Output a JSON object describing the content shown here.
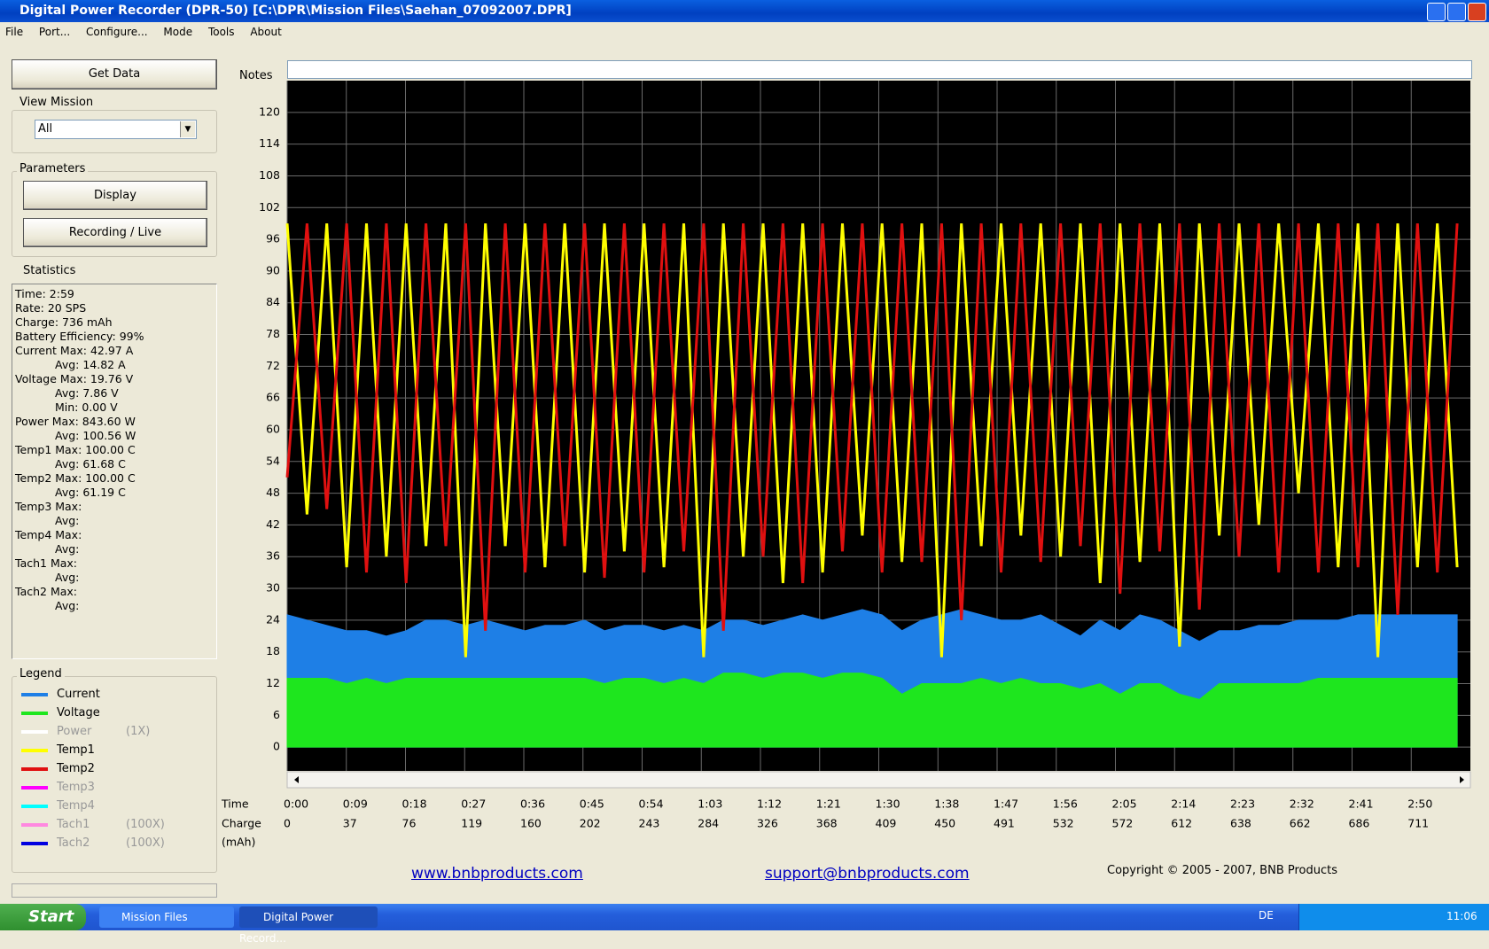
{
  "window": {
    "title": "Digital Power Recorder (DPR-50) [C:\\DPR\\Mission Files\\Saehan_07092007.DPR]"
  },
  "menu": [
    "File",
    "Port...",
    "Configure...",
    "Mode",
    "Tools",
    "About"
  ],
  "sidebar": {
    "get_data": "Get Data",
    "view_mission": {
      "label": "View Mission",
      "selected": "All"
    },
    "parameters": {
      "label": "Parameters",
      "buttons": [
        "Display",
        "Recording / Live"
      ]
    },
    "statistics": {
      "label": "Statistics",
      "lines": [
        "Time: 2:59",
        "Rate: 20 SPS",
        "Charge: 736 mAh",
        "Battery Efficiency: 99%",
        "Current Max: 42.97 A",
        "Avg: 14.82 A",
        "Voltage Max: 19.76 V",
        "Avg: 7.86 V",
        "Min: 0.00 V",
        "Power Max: 843.60 W",
        "Avg: 100.56 W",
        "Temp1 Max: 100.00 C",
        "Avg: 61.68 C",
        "Temp2 Max: 100.00 C",
        "Avg: 61.19 C",
        "Temp3 Max:",
        "Avg:",
        "Temp4 Max:",
        "Avg:",
        "Tach1 Max:",
        "Avg:",
        "Tach2 Max:",
        "Avg:"
      ]
    },
    "legend": {
      "label": "Legend",
      "items": [
        {
          "name": "Power",
          "color": "#ffffff",
          "scale": "(1X)"
        },
        {
          "name": "Temp3",
          "color": "#ff00ff"
        },
        {
          "name": "Temp4",
          "color": "#00ffff"
        },
        {
          "name": "Tach1",
          "color": "#ff88e0",
          "scale": "(100X)"
        },
        {
          "name": "Tach2",
          "color": "#0000e0",
          "scale": "(100X)"
        }
      ]
    }
  },
  "notes_label": "Notes",
  "chart_data": {
    "type": "line",
    "x_label": "Time",
    "x2_label": "Charge",
    "x2_unit": "(mAh)",
    "xlim": [
      0,
      179
    ],
    "xticks": [
      {
        "value": 0,
        "label": "0:00"
      },
      {
        "value": 8.95,
        "label": "0:09"
      },
      {
        "value": 17.9,
        "label": "0:18"
      },
      {
        "value": 26.85,
        "label": "0:27"
      },
      {
        "value": 35.8,
        "label": "0:36"
      },
      {
        "value": 44.75,
        "label": "0:45"
      },
      {
        "value": 53.7,
        "label": "0:54"
      },
      {
        "value": 62.65,
        "label": "1:03"
      },
      {
        "value": 71.6,
        "label": "1:12"
      },
      {
        "value": 80.55,
        "label": "1:21"
      },
      {
        "value": 89.5,
        "label": "1:30"
      },
      {
        "value": 98.45,
        "label": "1:38"
      },
      {
        "value": 107.4,
        "label": "1:47"
      },
      {
        "value": 116.35,
        "label": "1:56"
      },
      {
        "value": 125.3,
        "label": "2:05"
      },
      {
        "value": 134.25,
        "label": "2:14"
      },
      {
        "value": 143.2,
        "label": "2:23"
      },
      {
        "value": 152.15,
        "label": "2:32"
      },
      {
        "value": 161.1,
        "label": "2:41"
      },
      {
        "value": 170.05,
        "label": "2:50"
      }
    ],
    "x2ticks": [
      0,
      37,
      76,
      119,
      160,
      202,
      243,
      284,
      326,
      368,
      409,
      450,
      491,
      532,
      572,
      612,
      638,
      662,
      686,
      711
    ],
    "ylim": [
      -4.5,
      126
    ],
    "yticks": [
      0,
      6,
      12,
      18,
      24,
      30,
      36,
      42,
      48,
      54,
      60,
      66,
      72,
      78,
      84,
      90,
      96,
      102,
      108,
      114,
      120
    ],
    "grid": true,
    "x": [
      0,
      3,
      6,
      9,
      12,
      15,
      18,
      21,
      24,
      27,
      30,
      33,
      36,
      39,
      42,
      45,
      48,
      51,
      54,
      57,
      60,
      63,
      66,
      69,
      72,
      75,
      78,
      81,
      84,
      87,
      90,
      93,
      96,
      99,
      102,
      105,
      108,
      111,
      114,
      117,
      120,
      123,
      126,
      129,
      132,
      135,
      138,
      141,
      144,
      147,
      150,
      153,
      156,
      159,
      162,
      165,
      168,
      171,
      174,
      177
    ],
    "series": [
      {
        "name": "Current",
        "color": "#1e7fe6",
        "area": true,
        "values": [
          25,
          24,
          23,
          22,
          22,
          21,
          22,
          24,
          24,
          23,
          24,
          23,
          22,
          23,
          23,
          24,
          22,
          23,
          23,
          22,
          23,
          22,
          24,
          24,
          23,
          24,
          25,
          24,
          25,
          26,
          25,
          22,
          24,
          25,
          26,
          25,
          24,
          24,
          25,
          23,
          21,
          24,
          22,
          25,
          24,
          22,
          20,
          22,
          22,
          23,
          23,
          24,
          24,
          24,
          25,
          25,
          25,
          25,
          25,
          25
        ]
      },
      {
        "name": "Voltage",
        "color": "#1ee61e",
        "area": true,
        "values": [
          13,
          13,
          13,
          12,
          13,
          12,
          13,
          13,
          13,
          13,
          13,
          13,
          13,
          13,
          13,
          13,
          12,
          13,
          13,
          12,
          13,
          12,
          14,
          14,
          13,
          14,
          14,
          13,
          14,
          14,
          13,
          10,
          12,
          12,
          12,
          13,
          12,
          13,
          12,
          12,
          11,
          12,
          10,
          12,
          12,
          10,
          9,
          12,
          12,
          12,
          12,
          12,
          13,
          13,
          13,
          13,
          13,
          13,
          13,
          13
        ]
      },
      {
        "name": "Temp1",
        "color": "#ffff00",
        "area": false,
        "values": [
          99,
          44,
          99,
          34,
          99,
          36,
          99,
          38,
          99,
          17,
          99,
          38,
          99,
          34,
          99,
          33,
          99,
          37,
          99,
          34,
          99,
          17,
          99,
          36,
          99,
          31,
          99,
          33,
          99,
          40,
          99,
          35,
          99,
          17,
          99,
          38,
          99,
          40,
          99,
          36,
          99,
          31,
          99,
          35,
          99,
          19,
          99,
          40,
          99,
          42,
          99,
          48,
          99,
          34,
          99,
          17,
          99,
          34,
          99,
          34
        ]
      },
      {
        "name": "Temp2",
        "color": "#e01010",
        "area": false,
        "values": [
          51,
          99,
          45,
          99,
          33,
          99,
          31,
          99,
          38,
          99,
          22,
          99,
          33,
          99,
          38,
          99,
          32,
          99,
          33,
          99,
          37,
          99,
          22,
          99,
          36,
          99,
          31,
          99,
          37,
          99,
          33,
          99,
          35,
          99,
          24,
          99,
          33,
          99,
          35,
          99,
          38,
          99,
          29,
          99,
          37,
          99,
          26,
          99,
          36,
          99,
          33,
          99,
          33,
          99,
          34,
          99,
          25,
          99,
          33,
          99
        ]
      }
    ]
  },
  "footer": {
    "website": "www.bnbproducts.com",
    "email": "support@bnbproducts.com",
    "copyright": "Copyright © 2005 - 2007, BNB Products"
  },
  "taskbar": {
    "start": "Start",
    "tasks": [
      "Mission Files",
      "Digital Power Record..."
    ],
    "language": "DE",
    "clock": "11:06"
  }
}
